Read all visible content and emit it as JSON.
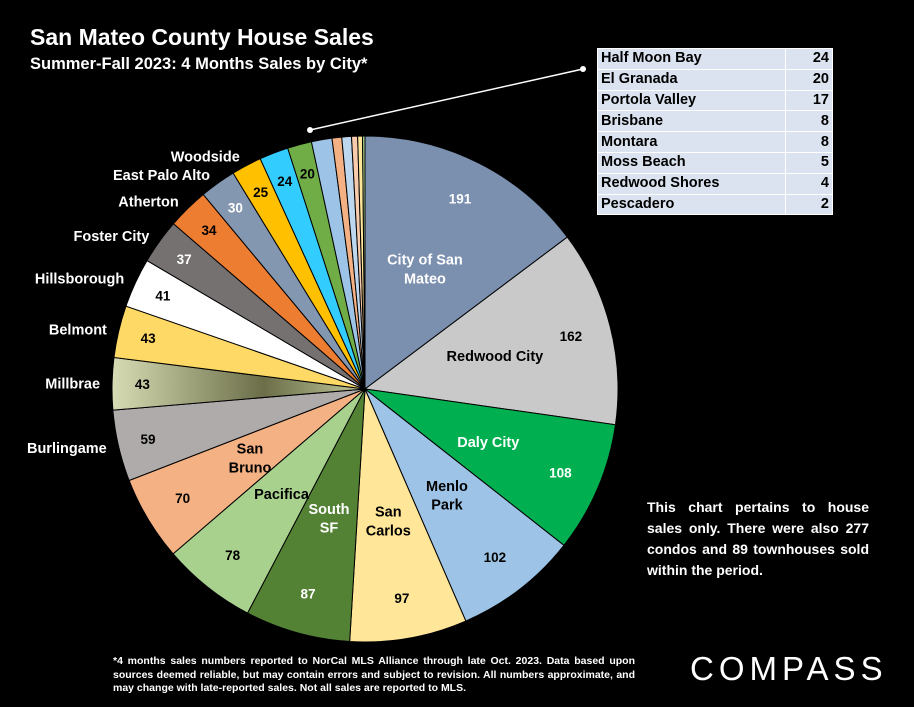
{
  "chart_data": {
    "type": "pie",
    "title": "San Mateo County House Sales",
    "subtitle": "Summer-Fall 2023: 4 Months Sales by City*",
    "slices": [
      {
        "name": "City of San Mateo",
        "display_name": "City of San\nMateo",
        "value": 191,
        "color": "#7b8faf",
        "label_color": "#ffffff"
      },
      {
        "name": "Redwood City",
        "value": 162,
        "color": "#c9c9c9",
        "label_color": "#000000"
      },
      {
        "name": "Daly City",
        "value": 108,
        "color": "#00b050",
        "label_color": "#ffffff"
      },
      {
        "name": "Menlo Park",
        "display_name": "Menlo\nPark",
        "value": 102,
        "color": "#9dc3e6",
        "label_color": "#000000"
      },
      {
        "name": "San Carlos",
        "display_name": "San\nCarlos",
        "value": 97,
        "color": "#ffe699",
        "label_color": "#000000"
      },
      {
        "name": "South SF",
        "display_name": "South\nSF",
        "value": 87,
        "color": "#548235",
        "label_color": "#ffffff"
      },
      {
        "name": "Pacifica",
        "value": 78,
        "color": "#a9d18e",
        "label_color": "#000000"
      },
      {
        "name": "San Bruno",
        "display_name": "San\nBruno",
        "value": 70,
        "color": "#f4b183",
        "label_color": "#000000"
      },
      {
        "name": "Burlingame",
        "value": 59,
        "color": "#afabab",
        "label_color": "#000000"
      },
      {
        "name": "Millbrae",
        "value": 43,
        "color": "#b4ba86",
        "label_color": "#000000"
      },
      {
        "name": "Belmont",
        "value": 43,
        "color": "#ffd966",
        "label_color": "#000000"
      },
      {
        "name": "Hillsborough",
        "value": 41,
        "color": "#ffffff",
        "label_color": "#000000"
      },
      {
        "name": "Foster City",
        "value": 37,
        "color": "#767171",
        "label_color": "#ffffff"
      },
      {
        "name": "Atherton",
        "value": 34,
        "color": "#ed7d31",
        "label_color": "#000000"
      },
      {
        "name": "East Palo Alto",
        "value": 30,
        "color": "#8497b0",
        "label_color": "#ffffff"
      },
      {
        "name": "Woodside",
        "value": 25,
        "color": "#ffc000",
        "label_color": "#000000"
      },
      {
        "name": "Half Moon Bay",
        "value": 24,
        "color": "#33ccff",
        "label_color": "#000000"
      },
      {
        "name": "El Granada",
        "value": 20,
        "color": "#70ad47",
        "label_color": "#000000"
      },
      {
        "name": "Portola Valley",
        "value": 17,
        "color": "#9dc3e6",
        "label_color": "#000000"
      },
      {
        "name": "Brisbane",
        "value": 8,
        "color": "#f4b183",
        "label_color": "#000000"
      },
      {
        "name": "Montara",
        "value": 8,
        "color": "#bdd7ee",
        "label_color": "#000000"
      },
      {
        "name": "Moss Beach",
        "value": 5,
        "color": "#f8cbad",
        "label_color": "#000000"
      },
      {
        "name": "Redwood Shores",
        "value": 4,
        "color": "#ffe699",
        "label_color": "#000000"
      },
      {
        "name": "Pescadero",
        "value": 2,
        "color": "#a9d18e",
        "label_color": "#000000"
      }
    ],
    "small_cities_table": [
      {
        "name": "Half Moon Bay",
        "value": "24"
      },
      {
        "name": "El Granada",
        "value": "20"
      },
      {
        "name": "Portola Valley",
        "value": "17"
      },
      {
        "name": "Brisbane",
        "value": "8"
      },
      {
        "name": "Montara",
        "value": "8"
      },
      {
        "name": "Moss Beach",
        "value": "5"
      },
      {
        "name": "Redwood Shores",
        "value": "4"
      },
      {
        "name": "Pescadero",
        "value": "2"
      }
    ]
  },
  "note": "This chart pertains to house sales only. There were also 277 condos and 89 townhouses sold within the period.",
  "footnote": "*4 months sales numbers reported to NorCal MLS Alliance through late Oct. 2023. Data based upon sources deemed reliable, but may contain errors and subject to revision. All numbers approximate, and may change with late-reported sales. Not all sales are reported to MLS.",
  "brand": "COMPASS"
}
